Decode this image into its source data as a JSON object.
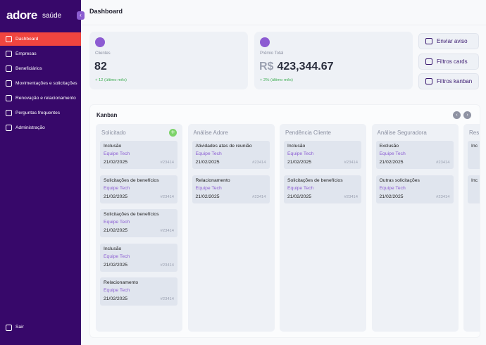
{
  "sidebar": {
    "logo": "adore",
    "logo_sub": "saúde",
    "menu": [
      "Dashboard",
      "Empresas",
      "Beneficiários",
      "Movimentações e solicitações",
      "Renovação e relacionamento",
      "Perguntas frequentes",
      "Administração"
    ],
    "logout": "Sair"
  },
  "header": {
    "title": "Dashboard"
  },
  "stats": [
    {
      "label": "Clientes",
      "value": "82",
      "change": "+ 12 (último mês)"
    },
    {
      "label": "Prêmio Total",
      "currency": "R$",
      "value": "423,344.67",
      "change": "+ 2% (último mês)"
    }
  ],
  "actions": [
    "Enviar aviso",
    "Filtros cards",
    "Filtros kanban"
  ],
  "kanban": {
    "title": "Kanban",
    "columns": [
      {
        "title": "Solicitado",
        "cards": [
          {
            "title": "Inclusão",
            "team": "Equipe Tech",
            "date": "21/02/2025",
            "id": "#23414"
          },
          {
            "title": "Solicitações de benefícios",
            "team": "Equipe Tech",
            "date": "21/02/2025",
            "id": "#23414"
          },
          {
            "title": "Solicitações de benefícios",
            "team": "Equipe Tech",
            "date": "21/02/2025",
            "id": "#23414"
          },
          {
            "title": "Inclusão",
            "team": "Equipe Tech",
            "date": "21/02/2025",
            "id": "#23414"
          },
          {
            "title": "Relacionamento",
            "team": "Equipe Tech",
            "date": "21/02/2025",
            "id": "#23414"
          }
        ]
      },
      {
        "title": "Análise Adore",
        "cards": [
          {
            "title": "Atividades atas de reunião",
            "team": "Equipe Tech",
            "date": "21/02/2025",
            "id": "#23414"
          },
          {
            "title": "Relacionamento",
            "team": "Equipe Tech",
            "date": "21/02/2025",
            "id": "#23414"
          }
        ]
      },
      {
        "title": "Pendência Cliente",
        "cards": [
          {
            "title": "Inclusão",
            "team": "Equipe Tech",
            "date": "21/02/2025",
            "id": "#23414"
          },
          {
            "title": "Solicitações de benefícios",
            "team": "Equipe Tech",
            "date": "21/02/2025",
            "id": "#23414"
          }
        ]
      },
      {
        "title": "Análise Seguradora",
        "cards": [
          {
            "title": "Exclusão",
            "team": "Equipe Tech",
            "date": "21/02/2025",
            "id": "#23414"
          },
          {
            "title": "Outras solicitações",
            "team": "Equipe Tech",
            "date": "21/02/2025",
            "id": "#23414"
          }
        ]
      },
      {
        "title": "Res",
        "cards": [
          {
            "title": "Inc"
          },
          {
            "title": "Inc"
          }
        ]
      }
    ]
  }
}
